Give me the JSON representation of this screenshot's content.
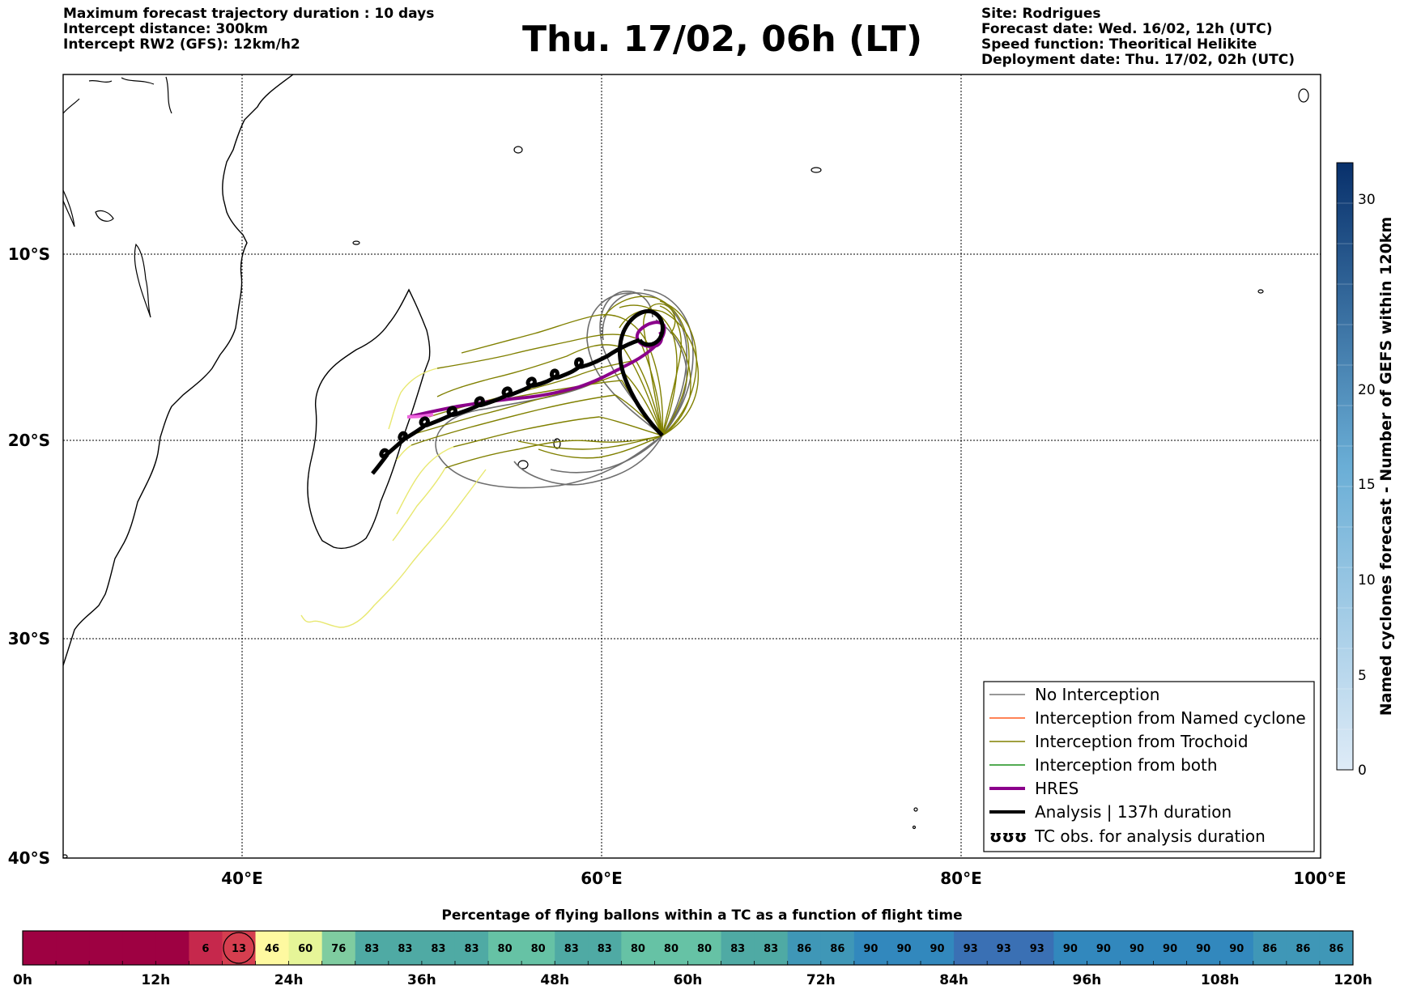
{
  "header": {
    "left": [
      "Maximum forecast trajectory duration : 10 days",
      "Intercept distance: 300km",
      "Intercept RW2 (GFS):  12km/h2"
    ],
    "title": "Thu. 17/02, 06h (LT)",
    "right": [
      "Site: Rodrigues",
      "Forecast date: Wed. 16/02, 12h (UTC)",
      "Speed function: Theoritical Helikite",
      "Deployment date: Thu. 17/02, 02h (UTC)"
    ]
  },
  "map": {
    "lat_labels": [
      "10°S",
      "20°S",
      "30°S",
      "40°S"
    ],
    "lon_labels": [
      "40°E",
      "60°E",
      "80°E",
      "100°E"
    ],
    "gridlines": true
  },
  "colorbar": {
    "label": "Named cyclones forecast - Number of GEFS within 120km",
    "ticks": [
      "0",
      "5",
      "10",
      "15",
      "20",
      "30"
    ],
    "color_low": "#dbe9f6",
    "color_high": "#08306b"
  },
  "legend": {
    "items": [
      {
        "label": "No Interception",
        "color": "#777777",
        "style": "thin"
      },
      {
        "label": "Interception from Named cyclone",
        "color": "#ff5a1f",
        "style": "thin"
      },
      {
        "label": "Interception from Trochoid",
        "color": "#808000",
        "style": "thin"
      },
      {
        "label": "Interception from both",
        "color": "#1a8f1a",
        "style": "thin"
      },
      {
        "label": "HRES",
        "color": "#8b008b",
        "style": "thick"
      },
      {
        "label": "Analysis | 137h duration",
        "color": "#000000",
        "style": "thick"
      },
      {
        "label": "TC obs. for analysis duration",
        "color": "#000000",
        "style": "symbol",
        "symbol": "ʊʊʊ"
      }
    ]
  },
  "bottom_bar": {
    "title": "Percentage of flying ballons within a TC as a function of flight time",
    "values": [
      "",
      "",
      "",
      "",
      "",
      "6",
      "13",
      "46",
      "60",
      "76",
      "83",
      "83",
      "83",
      "83",
      "80",
      "80",
      "83",
      "83",
      "80",
      "80",
      "80",
      "83",
      "83",
      "86",
      "86",
      "90",
      "90",
      "90",
      "93",
      "93",
      "93",
      "90",
      "90",
      "90",
      "90",
      "90",
      "90",
      "86",
      "86",
      "86"
    ],
    "colors": [
      "#9e0142",
      "#9e0142",
      "#9e0142",
      "#9e0142",
      "#9e0142",
      "#c6284c",
      "#d53e4f",
      "#fef9a0",
      "#e6f598",
      "#7fcca0",
      "#4faaa4",
      "#4faaa4",
      "#4faaa4",
      "#4faaa4",
      "#66c2a5",
      "#66c2a5",
      "#4faaa4",
      "#4faaa4",
      "#66c2a5",
      "#66c2a5",
      "#66c2a5",
      "#4faaa4",
      "#4faaa4",
      "#3f97b7",
      "#3f97b7",
      "#3288bd",
      "#3288bd",
      "#3288bd",
      "#3a70b4",
      "#3a70b4",
      "#3a70b4",
      "#3288bd",
      "#3288bd",
      "#3288bd",
      "#3288bd",
      "#3288bd",
      "#3288bd",
      "#3f97b7",
      "#3f97b7",
      "#3f97b7"
    ],
    "time_labels": [
      "0h",
      "12h",
      "24h",
      "36h",
      "48h",
      "60h",
      "72h",
      "84h",
      "96h",
      "108h",
      "120h"
    ],
    "highlight_index": 6
  }
}
